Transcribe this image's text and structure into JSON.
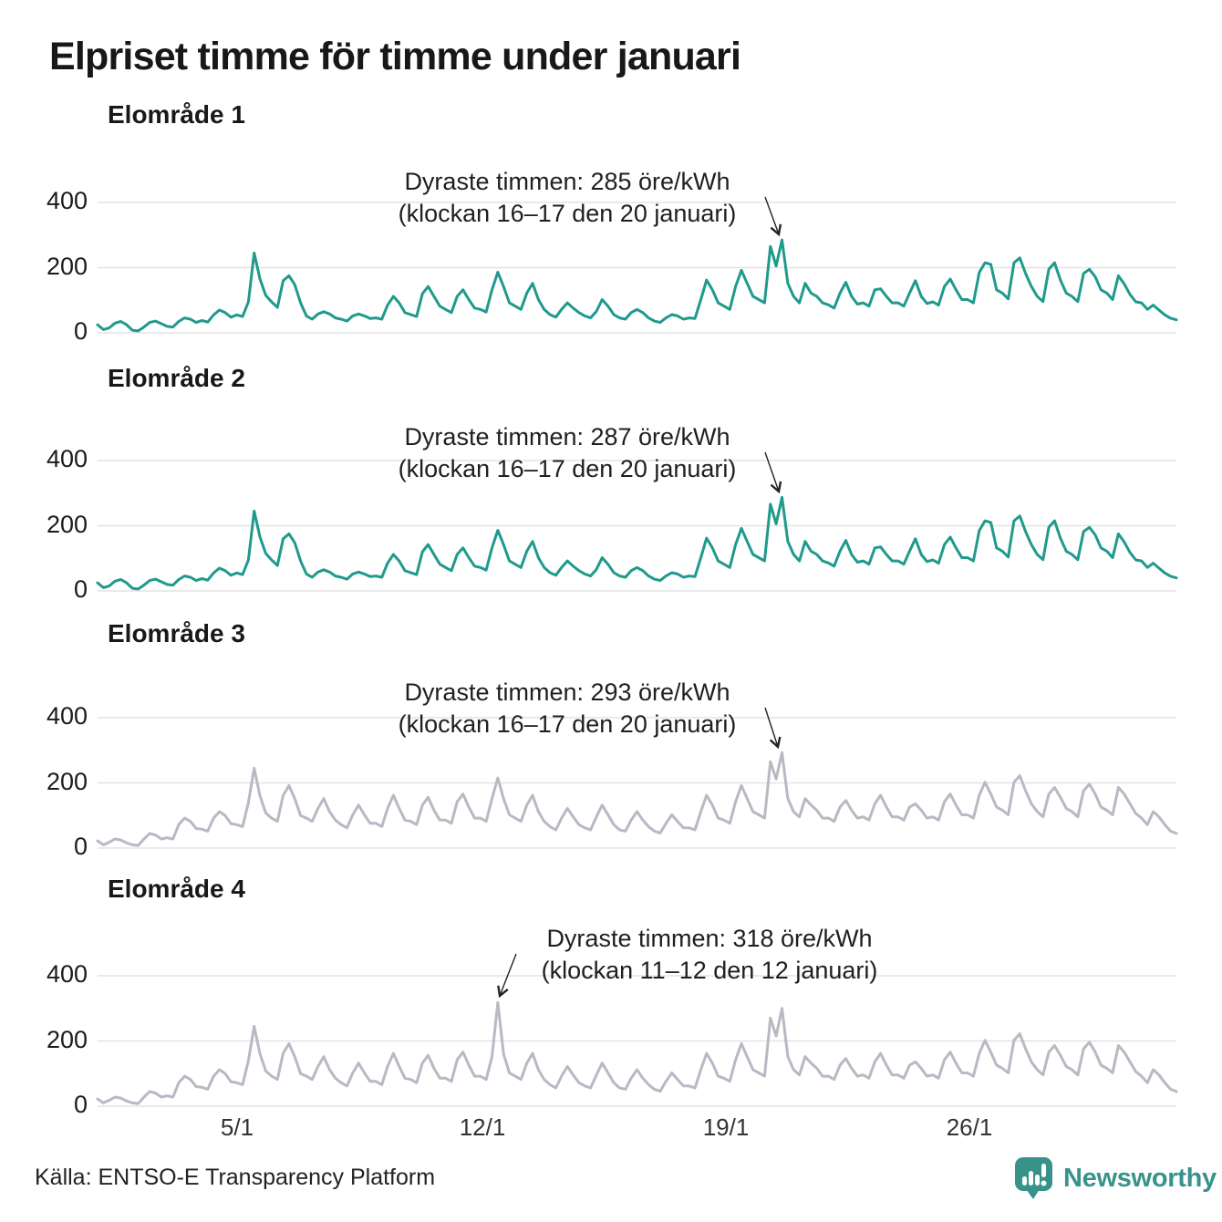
{
  "title": "Elpriset timme för timme under januari",
  "source": "Källa: ENTSO-E Transparency Platform",
  "brand": {
    "name": "Newsworthy",
    "color": "#37938a"
  },
  "colors": {
    "teal": "#1f9a8c",
    "gray": "#b9b8c4",
    "grid": "#e3e3e3",
    "arrow": "#222222",
    "text": "#181818"
  },
  "axis": {
    "y_tick_labels": [
      "400",
      "200",
      "0"
    ],
    "x_tick_labels": [
      "5/1",
      "12/1",
      "19/1",
      "26/1"
    ]
  },
  "chart_data": {
    "type": "line",
    "title": "Elpriset timme för timme under januari",
    "x_unit": "timme under januari (värden samplade var 4:e timme, 1–31 januari)",
    "y_unit": "öre/kWh",
    "ylim": [
      0,
      450
    ],
    "y_ticks": [
      0,
      200,
      400
    ],
    "x_tick_days": [
      5,
      12,
      19,
      26
    ],
    "x_tick_labels": [
      "5/1",
      "12/1",
      "19/1",
      "26/1"
    ],
    "x_step_hours": 4,
    "total_hours": 744,
    "grid": true,
    "panels": [
      {
        "title": "Elområde 1",
        "color": "#1f9a8c",
        "max_value": 285,
        "max_time": "klockan 16–17 den 20 januari",
        "annotation": {
          "line1": "Dyraste timmen: 285 öre/kWh",
          "line2": "(klockan 16–17 den 20 januari)"
        },
        "values": [
          25,
          10,
          15,
          30,
          35,
          25,
          8,
          6,
          18,
          32,
          36,
          28,
          20,
          18,
          35,
          46,
          42,
          32,
          38,
          33,
          55,
          70,
          62,
          48,
          55,
          50,
          95,
          245,
          165,
          115,
          95,
          78,
          160,
          175,
          148,
          92,
          52,
          42,
          58,
          65,
          58,
          46,
          42,
          36,
          52,
          58,
          52,
          44,
          46,
          42,
          85,
          112,
          92,
          62,
          56,
          50,
          120,
          142,
          112,
          82,
          72,
          62,
          112,
          132,
          102,
          76,
          72,
          64,
          132,
          186,
          142,
          92,
          82,
          72,
          122,
          152,
          102,
          72,
          56,
          48,
          72,
          92,
          76,
          62,
          52,
          46,
          66,
          102,
          82,
          56,
          46,
          42,
          62,
          72,
          62,
          46,
          36,
          32,
          46,
          56,
          52,
          42,
          46,
          44,
          102,
          162,
          132,
          92,
          82,
          72,
          142,
          192,
          152,
          112,
          102,
          92,
          265,
          205,
          285,
          152,
          112,
          92,
          152,
          122,
          112,
          92,
          86,
          76,
          122,
          155,
          112,
          88,
          92,
          82,
          132,
          135,
          112,
          92,
          92,
          82,
          122,
          160,
          112,
          90,
          95,
          85,
          142,
          165,
          132,
          102,
          102,
          92,
          185,
          215,
          210,
          132,
          122,
          104,
          215,
          230,
          182,
          142,
          112,
          96,
          195,
          215,
          162,
          122,
          112,
          96,
          182,
          195,
          172,
          132,
          122,
          102,
          175,
          150,
          118,
          95,
          92,
          72,
          85,
          70,
          55,
          45,
          40
        ]
      },
      {
        "title": "Elområde 2",
        "color": "#1f9a8c",
        "max_value": 287,
        "max_time": "klockan 16–17 den 20 januari",
        "annotation": {
          "line1": "Dyraste timmen: 287 öre/kWh",
          "line2": "(klockan 16–17 den 20 januari)"
        },
        "values": [
          25,
          10,
          15,
          30,
          35,
          25,
          8,
          6,
          18,
          32,
          36,
          28,
          20,
          18,
          35,
          46,
          42,
          32,
          38,
          33,
          55,
          70,
          62,
          48,
          55,
          50,
          95,
          245,
          165,
          115,
          95,
          78,
          160,
          175,
          148,
          92,
          52,
          42,
          58,
          65,
          58,
          46,
          42,
          36,
          52,
          58,
          52,
          44,
          46,
          42,
          85,
          112,
          92,
          62,
          56,
          50,
          120,
          142,
          112,
          82,
          72,
          62,
          112,
          132,
          102,
          76,
          72,
          64,
          132,
          186,
          142,
          92,
          82,
          72,
          122,
          152,
          102,
          72,
          56,
          48,
          72,
          92,
          76,
          62,
          52,
          46,
          66,
          102,
          82,
          56,
          46,
          42,
          62,
          72,
          62,
          46,
          36,
          32,
          46,
          56,
          52,
          42,
          46,
          44,
          102,
          162,
          132,
          92,
          82,
          72,
          142,
          192,
          152,
          112,
          102,
          92,
          266,
          206,
          287,
          152,
          112,
          92,
          152,
          122,
          112,
          92,
          86,
          76,
          122,
          155,
          112,
          88,
          92,
          82,
          132,
          135,
          112,
          92,
          92,
          82,
          122,
          160,
          112,
          90,
          95,
          85,
          142,
          165,
          132,
          102,
          102,
          92,
          185,
          215,
          210,
          132,
          122,
          104,
          215,
          230,
          182,
          142,
          112,
          96,
          195,
          215,
          162,
          122,
          112,
          96,
          182,
          195,
          172,
          132,
          122,
          102,
          175,
          150,
          118,
          95,
          92,
          72,
          85,
          70,
          55,
          45,
          40
        ]
      },
      {
        "title": "Elområde 3",
        "color": "#b9b8c4",
        "max_value": 293,
        "max_time": "klockan 16–17 den 20 januari",
        "annotation": {
          "line1": "Dyraste timmen: 293 öre/kWh",
          "line2": "(klockan 16–17 den 20 januari)"
        },
        "values": [
          22,
          10,
          18,
          28,
          25,
          16,
          10,
          8,
          28,
          45,
          40,
          28,
          32,
          28,
          72,
          92,
          82,
          60,
          58,
          52,
          92,
          112,
          100,
          75,
          72,
          66,
          140,
          245,
          160,
          108,
          92,
          82,
          162,
          192,
          152,
          100,
          92,
          82,
          122,
          152,
          112,
          86,
          72,
          62,
          102,
          132,
          102,
          76,
          76,
          66,
          122,
          162,
          122,
          86,
          82,
          72,
          132,
          156,
          116,
          86,
          86,
          76,
          142,
          166,
          126,
          92,
          92,
          82,
          152,
          215,
          152,
          102,
          92,
          82,
          132,
          162,
          112,
          82,
          66,
          56,
          92,
          122,
          96,
          72,
          62,
          56,
          96,
          132,
          102,
          72,
          56,
          52,
          86,
          112,
          86,
          66,
          52,
          46,
          76,
          102,
          82,
          62,
          62,
          56,
          112,
          162,
          132,
          92,
          86,
          76,
          142,
          192,
          152,
          112,
          102,
          92,
          265,
          212,
          293,
          152,
          112,
          96,
          152,
          132,
          116,
          92,
          92,
          82,
          126,
          146,
          116,
          92,
          96,
          86,
          136,
          162,
          126,
          96,
          96,
          86,
          126,
          136,
          116,
          92,
          96,
          86,
          142,
          166,
          132,
          102,
          102,
          92,
          162,
          202,
          166,
          126,
          116,
          102,
          202,
          222,
          176,
          136,
          112,
          96,
          166,
          186,
          156,
          122,
          112,
          96,
          176,
          196,
          166,
          126,
          116,
          102,
          186,
          166,
          136,
          106,
          92,
          72,
          112,
          96,
          72,
          52,
          45
        ]
      },
      {
        "title": "Elområde 4",
        "color": "#b9b8c4",
        "max_value": 318,
        "max_time": "klockan 11–12 den 12 januari",
        "annotation": {
          "line1": "Dyraste timmen: 318 öre/kWh",
          "line2": "(klockan 11–12 den 12 januari)"
        },
        "values": [
          22,
          10,
          18,
          28,
          25,
          16,
          10,
          8,
          28,
          45,
          40,
          28,
          32,
          28,
          72,
          92,
          82,
          60,
          58,
          52,
          92,
          112,
          100,
          75,
          72,
          66,
          140,
          245,
          160,
          108,
          92,
          82,
          162,
          192,
          152,
          100,
          92,
          82,
          122,
          152,
          112,
          86,
          72,
          62,
          102,
          132,
          102,
          76,
          76,
          66,
          122,
          162,
          122,
          86,
          82,
          72,
          132,
          156,
          116,
          86,
          86,
          76,
          142,
          166,
          126,
          92,
          92,
          82,
          152,
          318,
          160,
          102,
          92,
          82,
          132,
          162,
          112,
          82,
          66,
          56,
          92,
          122,
          96,
          72,
          62,
          56,
          96,
          132,
          102,
          72,
          56,
          52,
          86,
          112,
          86,
          66,
          52,
          46,
          76,
          102,
          82,
          62,
          62,
          56,
          112,
          162,
          132,
          92,
          86,
          76,
          142,
          192,
          152,
          112,
          102,
          92,
          270,
          215,
          300,
          152,
          112,
          96,
          152,
          132,
          116,
          92,
          92,
          82,
          126,
          146,
          116,
          92,
          96,
          86,
          136,
          162,
          126,
          96,
          96,
          86,
          126,
          136,
          116,
          92,
          96,
          86,
          142,
          166,
          132,
          102,
          102,
          92,
          162,
          202,
          166,
          126,
          116,
          102,
          202,
          222,
          176,
          136,
          112,
          96,
          166,
          186,
          156,
          122,
          112,
          96,
          176,
          196,
          166,
          126,
          116,
          102,
          186,
          166,
          136,
          106,
          92,
          72,
          112,
          96,
          72,
          52,
          45
        ]
      }
    ]
  }
}
